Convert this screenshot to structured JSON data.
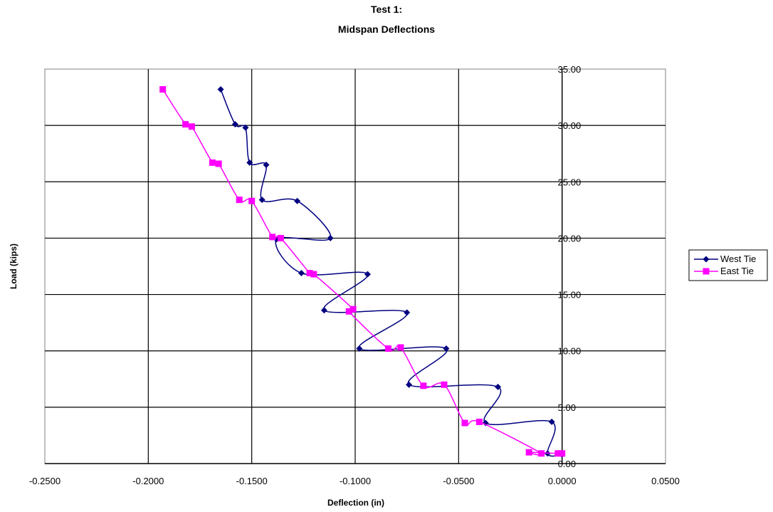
{
  "chart_data": {
    "type": "line",
    "title": [
      "Test 1:",
      "Midspan Deflections"
    ],
    "xlabel": "Deflection (in)",
    "ylabel": "Load (kips)",
    "xlim": [
      -0.25,
      0.05
    ],
    "ylim": [
      0,
      35
    ],
    "x_ticks": [
      -0.25,
      -0.2,
      -0.15,
      -0.1,
      -0.05,
      0.0,
      0.05
    ],
    "x_tick_labels": [
      "-0.2500",
      "-0.2000",
      "-0.1500",
      "-0.1000",
      "-0.0500",
      "0.0000",
      "0.0500"
    ],
    "y_ticks": [
      0,
      5,
      10,
      15,
      20,
      25,
      30,
      35
    ],
    "y_tick_labels": [
      "0.00",
      "5.00",
      "10.00",
      "15.00",
      "20.00",
      "25.00",
      "30.00",
      "35.00"
    ],
    "grid": true,
    "legend_position": "right",
    "series": [
      {
        "name": "West Tie",
        "color": "#000080",
        "marker": "diamond",
        "points": [
          [
            -0.165,
            33.2
          ],
          [
            -0.158,
            30.1
          ],
          [
            -0.153,
            29.8
          ],
          [
            -0.151,
            26.7
          ],
          [
            -0.143,
            26.5
          ],
          [
            -0.145,
            23.4
          ],
          [
            -0.128,
            23.3
          ],
          [
            -0.112,
            20.0
          ],
          [
            -0.138,
            19.9
          ],
          [
            -0.126,
            16.9
          ],
          [
            -0.094,
            16.8
          ],
          [
            -0.115,
            13.6
          ],
          [
            -0.075,
            13.4
          ],
          [
            -0.098,
            10.2
          ],
          [
            -0.056,
            10.2
          ],
          [
            -0.074,
            7.0
          ],
          [
            -0.031,
            6.8
          ],
          [
            -0.037,
            3.6
          ],
          [
            -0.005,
            3.7
          ],
          [
            -0.007,
            0.9
          ],
          [
            0.0,
            0.8
          ]
        ]
      },
      {
        "name": "East Tie",
        "color": "#ff00ff",
        "marker": "square",
        "points": [
          [
            -0.193,
            33.2
          ],
          [
            -0.182,
            30.1
          ],
          [
            -0.179,
            29.9
          ],
          [
            -0.169,
            26.7
          ],
          [
            -0.166,
            26.6
          ],
          [
            -0.156,
            23.4
          ],
          [
            -0.15,
            23.3
          ],
          [
            -0.14,
            20.1
          ],
          [
            -0.136,
            20.0
          ],
          [
            -0.122,
            16.9
          ],
          [
            -0.12,
            16.8
          ],
          [
            -0.101,
            13.7
          ],
          [
            -0.103,
            13.5
          ],
          [
            -0.084,
            10.2
          ],
          [
            -0.078,
            10.3
          ],
          [
            -0.067,
            6.9
          ],
          [
            -0.057,
            7.0
          ],
          [
            -0.047,
            3.6
          ],
          [
            -0.04,
            3.7
          ],
          [
            -0.01,
            0.9
          ],
          [
            -0.016,
            1.0
          ],
          [
            -0.002,
            0.9
          ],
          [
            0.0,
            0.9
          ]
        ]
      }
    ]
  }
}
